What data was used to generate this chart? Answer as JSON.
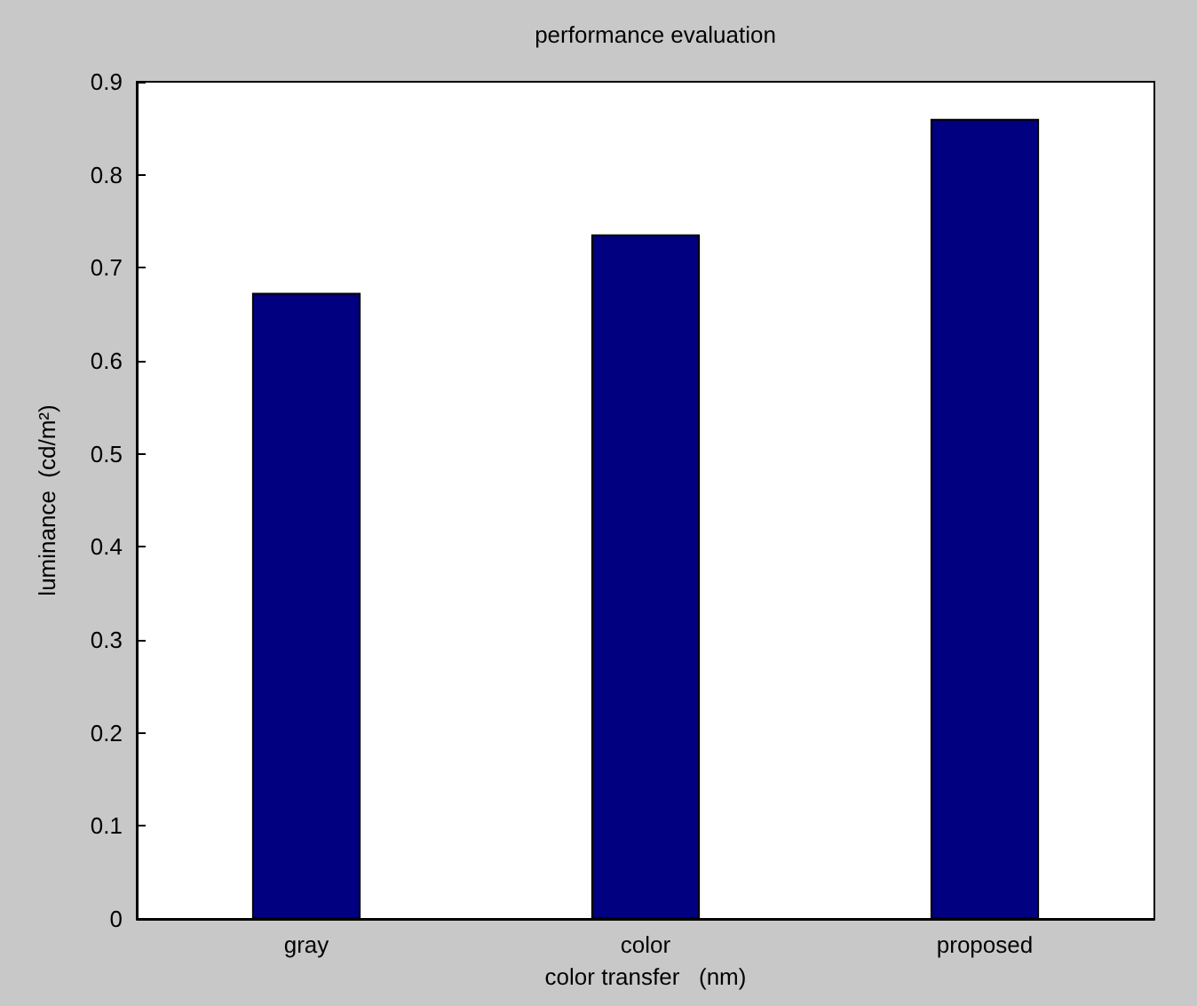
{
  "chart_data": {
    "type": "bar",
    "title": "performance evaluation",
    "xlabel": "color transfer   (nm)",
    "ylabel": "luminance  (cd/m²)",
    "categories": [
      "gray",
      "color",
      "proposed"
    ],
    "values": [
      0.673,
      0.736,
      0.86
    ],
    "color": "#000080",
    "ylim": [
      0,
      0.9
    ],
    "yticks": [
      0,
      0.1,
      0.2,
      0.3,
      0.4,
      0.5,
      0.6,
      0.7,
      0.8,
      0.9
    ],
    "grid": false
  }
}
